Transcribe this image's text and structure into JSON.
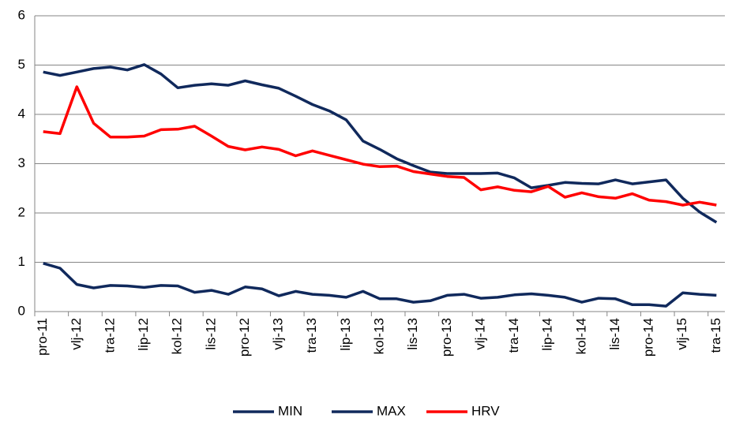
{
  "chart_data": {
    "type": "line",
    "categories": [
      "pro-11",
      null,
      "vlj-12",
      null,
      "tra-12",
      null,
      "lip-12",
      null,
      "kol-12",
      null,
      "lis-12",
      null,
      "pro-12",
      null,
      "vlj-13",
      null,
      "tra-13",
      null,
      "lip-13",
      null,
      "kol-13",
      null,
      "lis-13",
      null,
      "pro-13",
      null,
      "vlj-14",
      null,
      "tra-14",
      null,
      "lip-14",
      null,
      "kol-14",
      null,
      "lis-14",
      null,
      "pro-14",
      null,
      "vlj-15",
      null,
      "tra-15"
    ],
    "series": [
      {
        "name": "MIN",
        "color": "#10295c",
        "values": [
          0.98,
          0.88,
          0.55,
          0.48,
          0.53,
          0.52,
          0.49,
          0.53,
          0.52,
          0.39,
          0.43,
          0.35,
          0.5,
          0.46,
          0.32,
          0.41,
          0.35,
          0.33,
          0.29,
          0.41,
          0.26,
          0.26,
          0.19,
          0.22,
          0.33,
          0.35,
          0.27,
          0.29,
          0.34,
          0.36,
          0.33,
          0.29,
          0.19,
          0.27,
          0.26,
          0.14,
          0.14,
          0.11,
          0.38,
          0.35,
          0.33
        ]
      },
      {
        "name": "MAX",
        "color": "#10295c",
        "values": [
          4.86,
          4.79,
          4.86,
          4.93,
          4.96,
          4.9,
          5.01,
          4.82,
          4.54,
          4.59,
          4.62,
          4.59,
          4.68,
          4.6,
          4.53,
          4.37,
          4.2,
          4.07,
          3.89,
          3.46,
          3.29,
          3.1,
          2.96,
          2.83,
          2.8,
          2.8,
          2.8,
          2.81,
          2.71,
          2.51,
          2.56,
          2.62,
          2.6,
          2.59,
          2.67,
          2.59,
          2.63,
          2.67,
          2.3,
          2.02,
          1.81
        ]
      },
      {
        "name": "HRV",
        "color": "#ff0000",
        "values": [
          3.65,
          3.61,
          4.56,
          3.82,
          3.54,
          3.54,
          3.56,
          3.69,
          3.7,
          3.76,
          3.56,
          3.35,
          3.28,
          3.34,
          3.29,
          3.16,
          3.26,
          3.17,
          3.08,
          2.99,
          2.94,
          2.95,
          2.84,
          2.79,
          2.74,
          2.72,
          2.47,
          2.53,
          2.46,
          2.43,
          2.54,
          2.32,
          2.41,
          2.33,
          2.3,
          2.39,
          2.26,
          2.23,
          2.16,
          2.22,
          2.16
        ]
      }
    ],
    "ylim": [
      0,
      6
    ],
    "yticks": [
      0,
      1,
      2,
      3,
      4,
      5,
      6
    ],
    "grid": true,
    "legend": "bottom"
  }
}
